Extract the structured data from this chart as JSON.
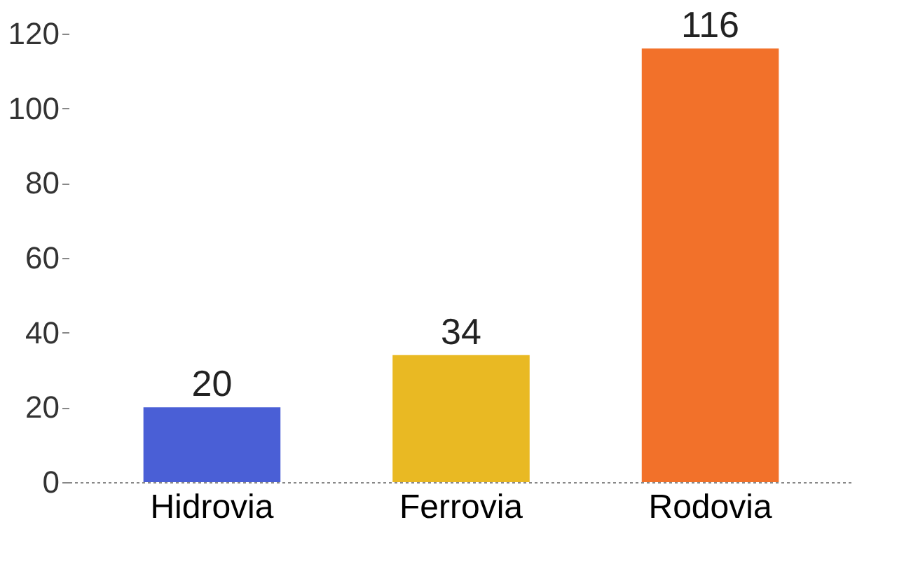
{
  "chart_data": {
    "type": "bar",
    "categories": [
      "Hidrovia",
      "Ferrovia",
      "Rodovia"
    ],
    "values": [
      20,
      34,
      116
    ],
    "colors": [
      "#4a5fd6",
      "#e9b923",
      "#f2712a"
    ],
    "ylim": [
      0,
      120
    ],
    "yticks": [
      0,
      20,
      40,
      60,
      80,
      100,
      120
    ],
    "grid": false,
    "data_labels": true
  }
}
